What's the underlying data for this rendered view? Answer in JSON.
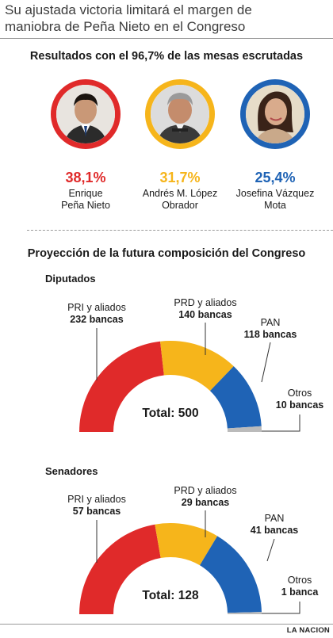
{
  "headline": {
    "line1": "Su ajustada victoria limitará el margen de",
    "line2": "maniobra de Peña Nieto en el Congreso"
  },
  "results": {
    "title": "Resultados con el 96,7% de las mesas escrutadas",
    "candidates": [
      {
        "pct": "38,1%",
        "name_line1": "Enrique",
        "name_line2": "Peña Nieto",
        "color": "#e02a2a",
        "value": 38.1
      },
      {
        "pct": "31,7%",
        "name_line1": "Andrés M. López",
        "name_line2": "Obrador",
        "color": "#f6b51b",
        "value": 31.7
      },
      {
        "pct": "25,4%",
        "name_line1": "Josefina Vázquez",
        "name_line2": "Mota",
        "color": "#1f63b5",
        "value": 25.4
      }
    ]
  },
  "projection": {
    "title": "Proyección de la futura composición del Congreso"
  },
  "chart_data": [
    {
      "type": "pie",
      "title": "Diputados",
      "total_label": "Total: 500",
      "total": 500,
      "series": [
        {
          "name": "PRI y aliados",
          "value": 232,
          "value_label": "232 bancas",
          "color": "#e02a2a"
        },
        {
          "name": "PRD y aliados",
          "value": 140,
          "value_label": "140 bancas",
          "color": "#f6b51b"
        },
        {
          "name": "PAN",
          "value": 118,
          "value_label": "118 bancas",
          "color": "#1f63b5"
        },
        {
          "name": "Otros",
          "value": 10,
          "value_label": "10 bancas",
          "color": "#bbbbbb"
        }
      ]
    },
    {
      "type": "pie",
      "title": "Senadores",
      "total_label": "Total: 128",
      "total": 128,
      "series": [
        {
          "name": "PRI y aliados",
          "value": 57,
          "value_label": "57 bancas",
          "color": "#e02a2a"
        },
        {
          "name": "PRD y aliados",
          "value": 29,
          "value_label": "29 bancas",
          "color": "#f6b51b"
        },
        {
          "name": "PAN",
          "value": 41,
          "value_label": "41 bancas",
          "color": "#1f63b5"
        },
        {
          "name": "Otros",
          "value": 1,
          "value_label": "1 banca",
          "color": "#bbbbbb"
        }
      ]
    }
  ],
  "footer": {
    "source": "LA NACION"
  }
}
